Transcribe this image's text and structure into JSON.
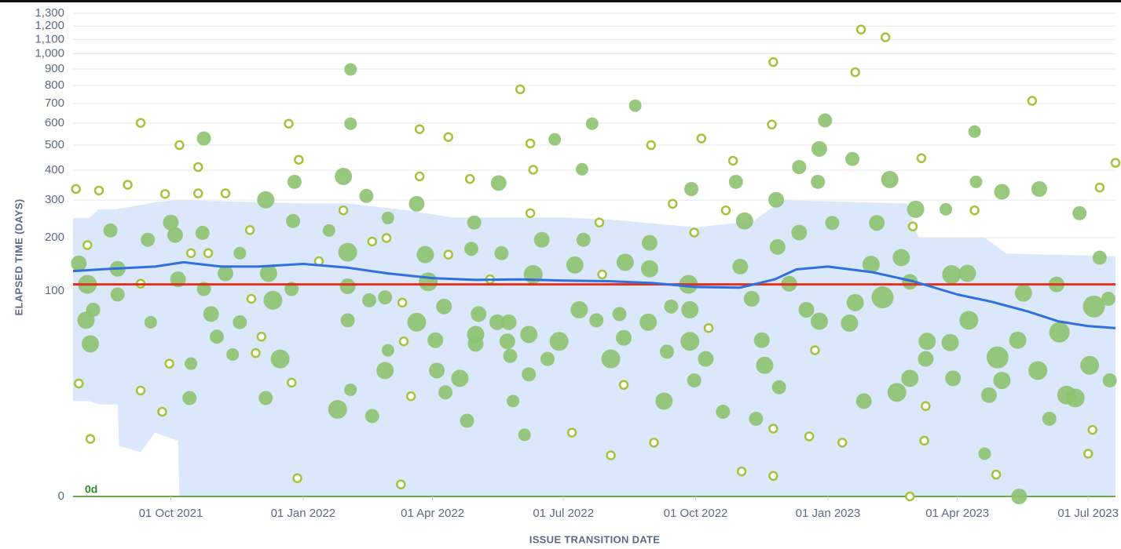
{
  "chart_data": {
    "type": "scatter",
    "y_label": "ELAPSED TIME (DAYS)",
    "x_label": "ISSUE TRANSITION DATE",
    "zero_label": "0d",
    "yscale": "cbrt",
    "grid": true,
    "xlim": [
      "2021-07-25",
      "2023-07-20"
    ],
    "ylim": [
      0,
      1300
    ],
    "yticks": [
      0,
      100,
      200,
      300,
      400,
      500,
      600,
      700,
      800,
      900,
      {
        "value": 1000,
        "label": "1,000"
      },
      {
        "value": 1100,
        "label": "1,100"
      },
      {
        "value": 1200,
        "label": "1,200"
      },
      {
        "value": 1300,
        "label": "1,300"
      }
    ],
    "xticks": [
      {
        "value": "2021-10-01",
        "label": "01 Oct 2021"
      },
      {
        "value": "2022-01-01",
        "label": "01 Jan 2022"
      },
      {
        "value": "2022-04-01",
        "label": "01 Apr 2022"
      },
      {
        "value": "2022-07-01",
        "label": "01 Jul 2022"
      },
      {
        "value": "2022-10-01",
        "label": "01 Oct 2022"
      },
      {
        "value": "2023-01-01",
        "label": "01 Jan 2023"
      },
      {
        "value": "2023-04-01",
        "label": "01 Apr 2023"
      },
      {
        "value": "2023-07-01",
        "label": "01 Jul 2023"
      }
    ],
    "band": {
      "color": "#dbe7fa",
      "x": [
        "2021-07-25",
        "2021-08-05",
        "2021-08-12",
        "2021-08-25",
        "2021-08-26",
        "2021-09-10",
        "2021-09-20",
        "2021-10-06",
        "2021-10-07",
        "2022-01-01",
        "2022-02-01",
        "2022-03-15",
        "2022-04-15",
        "2022-07-01",
        "2022-08-01",
        "2022-10-01",
        "2022-11-10",
        "2022-11-30",
        "2023-02-25",
        "2023-03-05",
        "2023-04-20",
        "2023-05-05",
        "2023-07-20"
      ],
      "upper": [
        249,
        249,
        273,
        273,
        275,
        285,
        294,
        300,
        300,
        290,
        290,
        270,
        250,
        250,
        245,
        225,
        240,
        300,
        290,
        200,
        200,
        165,
        160
      ],
      "lower": [
        10,
        10,
        9,
        9,
        1.5,
        1,
        3,
        2,
        0,
        0,
        0,
        0,
        0,
        0,
        0,
        0,
        0,
        0,
        0,
        0,
        0,
        0,
        0
      ]
    },
    "mean": {
      "color": "#e0321c",
      "value": 110
    },
    "rolling": {
      "color": "#2f6fe0",
      "x": [
        "2021-07-25",
        "2021-08-20",
        "2021-09-20",
        "2021-10-10",
        "2021-11-05",
        "2021-12-01",
        "2022-01-01",
        "2022-02-01",
        "2022-03-01",
        "2022-04-01",
        "2022-05-01",
        "2022-06-01",
        "2022-07-01",
        "2022-08-01",
        "2022-09-01",
        "2022-10-01",
        "2022-11-01",
        "2022-11-25",
        "2022-12-10",
        "2023-01-01",
        "2023-02-01",
        "2023-03-01",
        "2023-04-01",
        "2023-04-25",
        "2023-05-20",
        "2023-06-10",
        "2023-07-01",
        "2023-07-20"
      ],
      "values": [
        132,
        136,
        140,
        148,
        140,
        140,
        145,
        138,
        128,
        120,
        117,
        118,
        116,
        115,
        112,
        106,
        105,
        118,
        135,
        140,
        130,
        115,
        95,
        85,
        73,
        62,
        57,
        55
      ]
    },
    "series": [
      {
        "marker": "filled",
        "color": "#8dc26f",
        "x": [
          "2021-07-29",
          "2021-08-04",
          "2021-08-03",
          "2021-08-06",
          "2021-08-08",
          "2021-08-20",
          "2021-08-25",
          "2021-08-25",
          "2021-09-15",
          "2021-09-17",
          "2021-10-01",
          "2021-10-04",
          "2021-10-06",
          "2021-10-14",
          "2021-10-15",
          "2021-10-24",
          "2021-10-23",
          "2021-10-24",
          "2021-10-29",
          "2021-11-02",
          "2021-11-08",
          "2021-11-13",
          "2021-11-18",
          "2021-11-18",
          "2021-12-06",
          "2021-12-08",
          "2021-12-11",
          "2021-12-16",
          "2021-12-06",
          "2021-12-26",
          "2021-12-25",
          "2021-12-24",
          "2022-01-19",
          "2022-01-25",
          "2022-01-29",
          "2022-02-03",
          "2022-02-03",
          "2022-02-01",
          "2022-02-01",
          "2022-02-01",
          "2022-02-03",
          "2022-02-14",
          "2022-02-16",
          "2022-02-18",
          "2022-02-27",
          "2022-03-01",
          "2022-03-01",
          "2022-02-27",
          "2022-03-21",
          "2022-03-21",
          "2022-03-27",
          "2022-03-29",
          "2022-04-03",
          "2022-04-04",
          "2022-04-09",
          "2022-04-10",
          "2022-04-20",
          "2022-04-25",
          "2022-04-28",
          "2022-04-30",
          "2022-05-03",
          "2022-05-01",
          "2022-05-01",
          "2022-05-17",
          "2022-05-19",
          "2022-05-16",
          "2022-05-24",
          "2022-05-23",
          "2022-05-25",
          "2022-05-27",
          "2022-06-04",
          "2022-06-07",
          "2022-06-07",
          "2022-06-10",
          "2022-06-16",
          "2022-06-20",
          "2022-06-25",
          "2022-06-28",
          "2022-07-09",
          "2022-07-12",
          "2022-07-15",
          "2022-07-14",
          "2022-07-21",
          "2022-07-24",
          "2022-08-03",
          "2022-08-09",
          "2022-08-12",
          "2022-08-13",
          "2022-08-20",
          "2022-08-30",
          "2022-08-30",
          "2022-08-29",
          "2022-09-09",
          "2022-09-11",
          "2022-09-14",
          "2022-09-28",
          "2022-09-26",
          "2022-09-27",
          "2022-09-27",
          "2022-09-30",
          "2022-10-08",
          "2022-10-20",
          "2022-10-29",
          "2022-11-01",
          "2022-11-04",
          "2022-11-09",
          "2022-11-12",
          "2022-11-18",
          "2022-11-16",
          "2022-11-26",
          "2022-11-27",
          "2022-11-28",
          "2022-12-05",
          "2022-12-12",
          "2022-12-12",
          "2022-12-17",
          "2022-12-26",
          "2022-12-25",
          "2022-12-30",
          "2022-12-26",
          "2023-01-04",
          "2023-01-18",
          "2023-01-16",
          "2023-01-20",
          "2023-01-26",
          "2023-01-31",
          "2023-02-04",
          "2023-02-08",
          "2023-02-13",
          "2023-02-18",
          "2023-02-21",
          "2023-02-27",
          "2023-03-03",
          "2023-02-27",
          "2023-03-10",
          "2023-03-11",
          "2023-03-24",
          "2023-03-27",
          "2023-03-28",
          "2023-03-29",
          "2023-04-08",
          "2023-04-09",
          "2023-04-13",
          "2023-04-14",
          "2023-04-20",
          "2023-04-23",
          "2023-04-29",
          "2023-05-02",
          "2023-05-02",
          "2023-05-14",
          "2023-05-13",
          "2023-05-17",
          "2023-05-28",
          "2023-05-27",
          "2023-06-04",
          "2023-06-09",
          "2023-06-11",
          "2023-06-16",
          "2023-06-22",
          "2023-06-25",
          "2023-07-05",
          "2023-07-02",
          "2023-07-09",
          "2023-07-15",
          "2023-07-16"
        ],
        "values": [
          146,
          110,
          63,
          41,
          75,
          217,
          136,
          95,
          195,
          61,
          237,
          206,
          118,
          11,
          27,
          529,
          211,
          103,
          70,
          47,
          128,
          33,
          166,
          61,
          301,
          128,
          87,
          30,
          11,
          359,
          241,
          103,
          217,
          7.6,
          378,
          898,
          597,
          168,
          107,
          63,
          14,
          313,
          87,
          6,
          91,
          249,
          36,
          23,
          289,
          61,
          163,
          114,
          44,
          23,
          79,
          13,
          19,
          5,
          175,
          237,
          70,
          49,
          41,
          355,
          166,
          61,
          61,
          43,
          32,
          10,
          2.7,
          21,
          49,
          126,
          195,
          30,
          525,
          43,
          143,
          75,
          195,
          404,
          597,
          63,
          30,
          70,
          46,
          148,
          688,
          188,
          136,
          61,
          10,
          35,
          79,
          335,
          110,
          75,
          43,
          18,
          30,
          7,
          359,
          140,
          241,
          89,
          5.4,
          26,
          44,
          301,
          179,
          15,
          111,
          412,
          212,
          75,
          484,
          359,
          613,
          62,
          236,
          443,
          60,
          84,
          10,
          144,
          236,
          91,
          367,
          13,
          157,
          114,
          273,
          19,
          30,
          43,
          273,
          42,
          126,
          19,
          128,
          63,
          560,
          359,
          0.9,
          12,
          31,
          326,
          18,
          0,
          44,
          97,
          335,
          23,
          5.4,
          110,
          51,
          12,
          11,
          262,
          79,
          26,
          157,
          89,
          18
        ],
        "sizes": [
          10,
          12,
          11,
          11,
          9,
          9,
          10,
          9,
          9,
          8,
          10,
          10,
          10,
          9,
          8,
          9,
          9,
          9,
          10,
          9,
          10,
          8,
          8,
          9,
          11,
          11,
          12,
          12,
          9,
          9,
          9,
          9,
          8,
          12,
          11,
          8,
          8,
          12,
          10,
          9,
          8,
          9,
          9,
          9,
          9,
          8,
          8,
          11,
          10,
          12,
          11,
          12,
          10,
          10,
          10,
          9,
          11,
          9,
          9,
          9,
          10,
          11,
          10,
          10,
          9,
          10,
          10,
          10,
          9,
          8,
          8,
          9,
          11,
          12,
          10,
          9,
          8,
          12,
          11,
          11,
          9,
          8,
          8,
          9,
          12,
          9,
          10,
          11,
          8,
          10,
          11,
          11,
          11,
          9,
          9,
          9,
          12,
          11,
          12,
          9,
          10,
          9,
          9,
          10,
          11,
          10,
          9,
          11,
          10,
          10,
          10,
          9,
          10,
          9,
          10,
          10,
          10,
          9,
          9,
          11,
          9,
          9,
          11,
          11,
          10,
          11,
          10,
          14,
          11,
          12,
          11,
          10,
          11,
          11,
          10,
          11,
          8,
          11,
          12,
          10,
          11,
          12,
          8,
          8,
          8,
          10,
          14,
          10,
          11,
          10,
          11,
          11,
          10,
          12,
          9,
          10,
          13,
          12,
          12,
          9,
          14,
          12,
          9,
          9,
          9
        ]
      },
      {
        "marker": "hollow",
        "color": "#a5c23a",
        "x": [
          "2021-07-27",
          "2021-08-04",
          "2021-08-06",
          "2021-07-29",
          "2021-08-12",
          "2021-09-01",
          "2021-09-10",
          "2021-09-10",
          "2021-09-10",
          "2021-09-25",
          "2021-09-27",
          "2021-09-30",
          "2021-10-07",
          "2021-10-15",
          "2021-10-20",
          "2021-10-20",
          "2021-10-27",
          "2021-11-08",
          "2021-11-25",
          "2021-11-26",
          "2021-11-29",
          "2021-12-03",
          "2021-12-22",
          "2021-12-24",
          "2021-12-28",
          "2021-12-29",
          "2022-01-12",
          "2022-01-29",
          "2022-02-18",
          "2022-02-28",
          "2022-03-11",
          "2022-03-12",
          "2022-03-17",
          "2022-03-10",
          "2022-03-23",
          "2022-03-23",
          "2022-04-12",
          "2022-04-12",
          "2022-04-27",
          "2022-05-11",
          "2022-06-01",
          "2022-06-08",
          "2022-06-10",
          "2022-06-08",
          "2022-07-07",
          "2022-07-26",
          "2022-07-28",
          "2022-08-03",
          "2022-08-12",
          "2022-08-31",
          "2022-09-02",
          "2022-09-15",
          "2022-09-30",
          "2022-10-05",
          "2022-10-10",
          "2022-10-22",
          "2022-10-27",
          "2022-11-02",
          "2022-11-23",
          "2022-11-24",
          "2022-11-24",
          "2022-11-24",
          "2022-12-19",
          "2022-12-23",
          "2023-01-11",
          "2023-01-20",
          "2023-01-24",
          "2023-02-10",
          "2023-02-27",
          "2023-03-01",
          "2023-03-07",
          "2023-03-10",
          "2023-03-09",
          "2023-04-13",
          "2023-04-28",
          "2023-05-23",
          "2023-07-01",
          "2023-07-04",
          "2023-07-09",
          "2023-07-20"
        ],
        "values": [
          335,
          183,
          2.2,
          16.6,
          330,
          349,
          601,
          111,
          13.7,
          7,
          319,
          27,
          500,
          166,
          412,
          321,
          166,
          321,
          218,
          89,
          34,
          47,
          597,
          17,
          0.07,
          440,
          150,
          270,
          191,
          199,
          84,
          43,
          11.6,
          0.02,
          571,
          378,
          535,
          163,
          369,
          118,
          778,
          507,
          402,
          262,
          3,
          237,
          126,
          0.8,
          16,
          500,
          1.8,
          289,
          212,
          529,
          55,
          270,
          436,
          0.18,
          593,
          945,
          3.6,
          0.1,
          2.5,
          36,
          1.8,
          880,
          1174,
          1116,
          0,
          227,
          446,
          8.5,
          2,
          270,
          0.12,
          714,
          0.9,
          3.4,
          340,
          428
        ]
      }
    ]
  }
}
